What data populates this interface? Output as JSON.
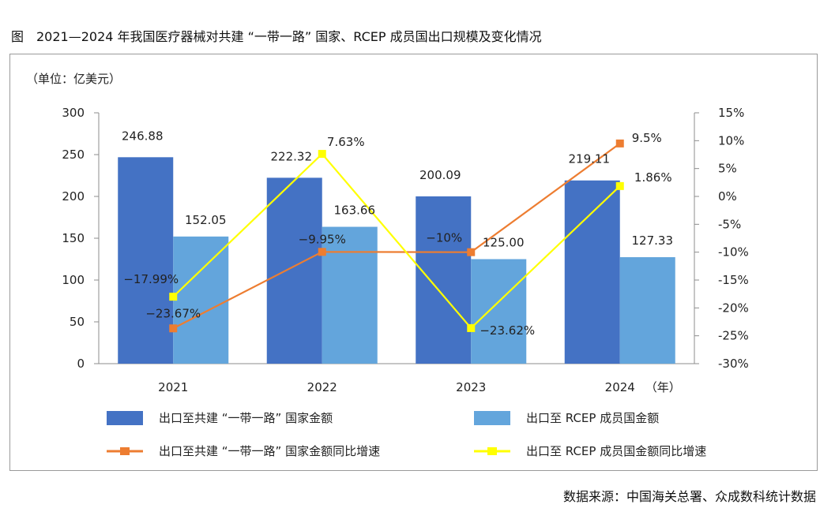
{
  "figure_title": "图　2021—2024 年我国医疗器械对共建 “一带一路” 国家、RCEP 成员国出口规模及变化情况",
  "source_note": "数据来源：中国海关总署、众成数科统计数据",
  "chart_data": {
    "type": "bar",
    "unit_label": "（单位：亿美元）",
    "year_unit": "（年）",
    "categories": [
      "2021",
      "2022",
      "2023",
      "2024"
    ],
    "ylim": [
      0,
      300
    ],
    "yticks": [
      "0",
      "50",
      "100",
      "150",
      "200",
      "250",
      "300"
    ],
    "y2lim": [
      -30,
      15
    ],
    "y2ticks": [
      "-30%",
      "-25%",
      "-20%",
      "-15%",
      "-10%",
      "-5%",
      "0%",
      "5%",
      "10%",
      "15%"
    ],
    "grid": false,
    "bars": [
      {
        "name": "出口至共建 “一带一路” 国家金额",
        "color": "#4472c4",
        "values": [
          246.88,
          222.32,
          200.09,
          219.11
        ],
        "labels": [
          "246.88",
          "222.32",
          "200.09",
          "219.11"
        ]
      },
      {
        "name": "出口至 RCEP 成员国金额",
        "color": "#63a5dc",
        "values": [
          152.05,
          163.66,
          125.0,
          127.33
        ],
        "labels": [
          "152.05",
          "163.66",
          "125.00",
          "127.33"
        ]
      }
    ],
    "lines": [
      {
        "name": "出口至共建 “一带一路” 国家金额同比增速",
        "color": "#ed7d31",
        "values": [
          -23.67,
          -9.95,
          -10,
          9.5
        ],
        "labels": [
          "−23.67%",
          "−9.95%",
          "−10%",
          "9.5%"
        ]
      },
      {
        "name": "出口至 RCEP 成员国金额同比增速",
        "color": "#ffff00",
        "values": [
          -17.99,
          7.63,
          -23.62,
          1.86
        ],
        "labels": [
          "−17.99%",
          "7.63%",
          "−23.62%",
          "1.86%"
        ]
      }
    ]
  }
}
